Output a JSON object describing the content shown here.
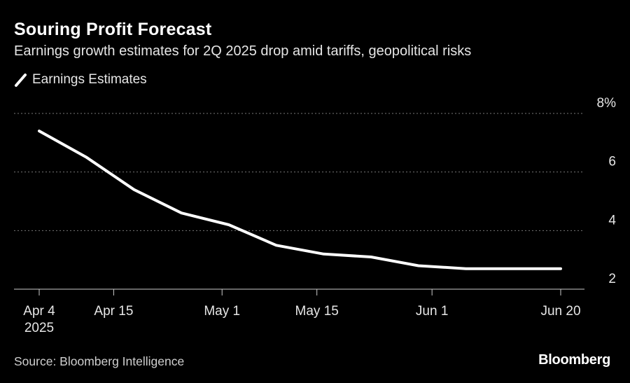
{
  "header": {
    "title": "Souring Profit Forecast",
    "subtitle": "Earnings growth estimates for 2Q 2025 drop amid tariffs, geopolitical risks"
  },
  "footer": {
    "source": "Source: Bloomberg Intelligence",
    "brand": "Bloomberg"
  },
  "colors": {
    "background": "#000000",
    "line": "#ffffff",
    "grid": "#777777"
  },
  "chart_data": {
    "type": "line",
    "ylim": [
      2,
      8
    ],
    "ytick_values": [
      2,
      4,
      6,
      8
    ],
    "ytick_labels": [
      "2",
      "4",
      "6",
      "8%"
    ],
    "y_axis_side": "right",
    "grid": true,
    "legend": "top-left",
    "xlim": [
      "2025-04-04",
      "2025-06-20"
    ],
    "xticks": [
      {
        "date": "2025-04-04",
        "line1": "Apr 4",
        "line2": "2025"
      },
      {
        "date": "2025-04-15",
        "line1": "Apr 15",
        "line2": ""
      },
      {
        "date": "2025-05-01",
        "line1": "May 1",
        "line2": ""
      },
      {
        "date": "2025-05-15",
        "line1": "May 15",
        "line2": ""
      },
      {
        "date": "2025-06-01",
        "line1": "Jun 1",
        "line2": ""
      },
      {
        "date": "2025-06-20",
        "line1": "Jun 20",
        "line2": ""
      }
    ],
    "series": [
      {
        "name": "Earnings Estimates",
        "points": [
          {
            "x": "2025-04-04",
            "y": 7.4
          },
          {
            "x": "2025-04-11",
            "y": 6.5
          },
          {
            "x": "2025-04-18",
            "y": 5.4
          },
          {
            "x": "2025-04-25",
            "y": 4.6
          },
          {
            "x": "2025-05-02",
            "y": 4.2
          },
          {
            "x": "2025-05-09",
            "y": 3.5
          },
          {
            "x": "2025-05-16",
            "y": 3.2
          },
          {
            "x": "2025-05-23",
            "y": 3.1
          },
          {
            "x": "2025-05-30",
            "y": 2.8
          },
          {
            "x": "2025-06-06",
            "y": 2.7
          },
          {
            "x": "2025-06-13",
            "y": 2.7
          },
          {
            "x": "2025-06-20",
            "y": 2.7
          }
        ]
      }
    ]
  }
}
